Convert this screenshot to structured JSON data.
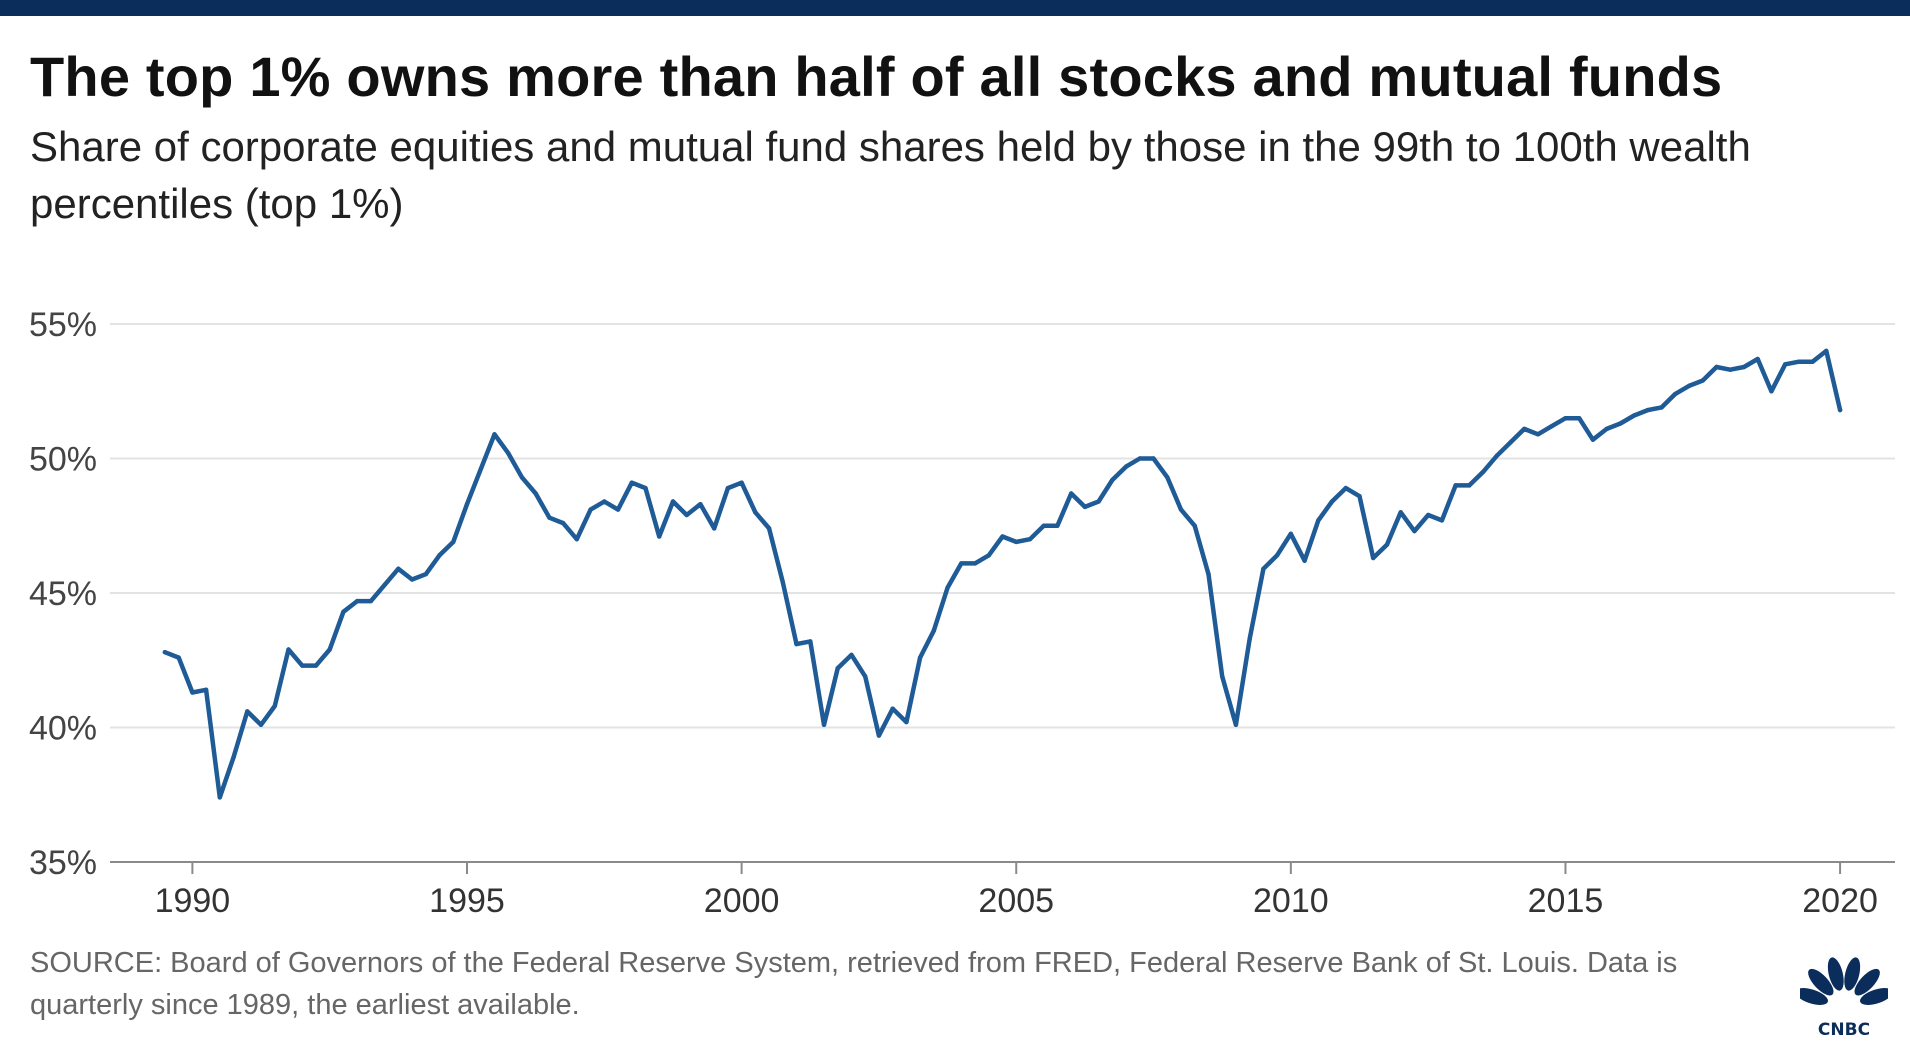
{
  "title": "The top 1% owns more than half of all stocks and mutual funds",
  "subtitle": "Share of corporate equities and mutual fund shares held by those in the 99th to 100th wealth percentiles (top 1%)",
  "source": "SOURCE: Board of Governors of the Federal Reserve System, retrieved from FRED, Federal Reserve Bank of St. Louis. Data is quarterly since 1989, the earliest available.",
  "logo": {
    "text": "CNBC",
    "icon": "nbc-peacock-icon"
  },
  "colors": {
    "line": "#1f5b96",
    "grid": "#e3e3e3",
    "topbar": "#0b2d5b",
    "logo": "#0b2d5b"
  },
  "chart_data": {
    "type": "line",
    "title": "The top 1% owns more than half of all stocks and mutual funds",
    "subtitle": "Share of corporate equities and mutual fund shares held by those in the 99th to 100th wealth percentiles (top 1%)",
    "xlabel": "",
    "ylabel": "",
    "xlim": [
      1988.5,
      2021.0
    ],
    "ylim": [
      35,
      55
    ],
    "yticks": [
      35,
      40,
      45,
      50,
      55
    ],
    "ytick_labels": [
      "35%",
      "40%",
      "45%",
      "50%",
      "55%"
    ],
    "xticks": [
      1990,
      1995,
      2000,
      2005,
      2010,
      2015,
      2020
    ],
    "xtick_labels": [
      "1990",
      "1995",
      "2000",
      "2005",
      "2010",
      "2015",
      "2020"
    ],
    "grid": true,
    "legend": "none",
    "series": [
      {
        "x": [
          1989.5,
          1989.75,
          1990.0,
          1990.25,
          1990.5,
          1990.75,
          1991.0,
          1991.25,
          1991.5,
          1991.75,
          1992.0,
          1992.25,
          1992.5,
          1992.75,
          1993.0,
          1993.25,
          1993.5,
          1993.75,
          1994.0,
          1994.25,
          1994.5,
          1994.75,
          1995.0,
          1995.25,
          1995.5,
          1995.75,
          1996.0,
          1996.25,
          1996.5,
          1996.75,
          1997.0,
          1997.25,
          1997.5,
          1997.75,
          1998.0,
          1998.25,
          1998.5,
          1998.75,
          1999.0,
          1999.25,
          1999.5,
          1999.75,
          2000.0,
          2000.25,
          2000.5,
          2000.75,
          2001.0,
          2001.25,
          2001.5,
          2001.75,
          2002.0,
          2002.25,
          2002.5,
          2002.75,
          2003.0,
          2003.25,
          2003.5,
          2003.75,
          2004.0,
          2004.25,
          2004.5,
          2004.75,
          2005.0,
          2005.25,
          2005.5,
          2005.75,
          2006.0,
          2006.25,
          2006.5,
          2006.75,
          2007.0,
          2007.25,
          2007.5,
          2007.75,
          2008.0,
          2008.25,
          2008.5,
          2008.75,
          2009.0,
          2009.25,
          2009.5,
          2009.75,
          2010.0,
          2010.25,
          2010.5,
          2010.75,
          2011.0,
          2011.25,
          2011.5,
          2011.75,
          2012.0,
          2012.25,
          2012.5,
          2012.75,
          2013.0,
          2013.25,
          2013.5,
          2013.75,
          2014.0,
          2014.25,
          2014.5,
          2014.75,
          2015.0,
          2015.25,
          2015.5,
          2015.75,
          2016.0,
          2016.25,
          2016.5,
          2016.75,
          2017.0,
          2017.25,
          2017.5,
          2017.75,
          2018.0,
          2018.25,
          2018.5,
          2018.75,
          2019.0,
          2019.25,
          2019.5,
          2019.75,
          2020.0
        ],
        "values": [
          42.8,
          42.6,
          41.3,
          41.4,
          37.4,
          38.9,
          40.6,
          40.1,
          40.8,
          42.9,
          42.3,
          42.3,
          42.9,
          44.3,
          44.7,
          44.7,
          45.3,
          45.9,
          45.5,
          45.7,
          46.4,
          46.9,
          48.3,
          49.6,
          50.9,
          50.2,
          49.3,
          48.7,
          47.8,
          47.6,
          47.0,
          48.1,
          48.4,
          48.1,
          49.1,
          48.9,
          47.1,
          48.4,
          47.9,
          48.3,
          47.4,
          48.9,
          49.1,
          48.0,
          47.4,
          45.4,
          43.1,
          43.2,
          40.1,
          42.2,
          42.7,
          41.9,
          39.7,
          40.7,
          40.2,
          42.6,
          43.6,
          45.2,
          46.1,
          46.1,
          46.4,
          47.1,
          46.9,
          47.0,
          47.5,
          47.5,
          48.7,
          48.2,
          48.4,
          49.2,
          49.7,
          50.0,
          50.0,
          49.3,
          48.1,
          47.5,
          45.7,
          41.9,
          40.1,
          43.3,
          45.9,
          46.4,
          47.2,
          46.2,
          47.7,
          48.4,
          48.9,
          48.6,
          46.3,
          46.8,
          48.0,
          47.3,
          47.9,
          47.7,
          49.0,
          49.0,
          49.5,
          50.1,
          50.6,
          51.1,
          50.9,
          51.2,
          51.5,
          51.5,
          50.7,
          51.1,
          51.3,
          51.6,
          51.8,
          51.9,
          52.4,
          52.7,
          52.9,
          53.4,
          53.3,
          53.4,
          53.7,
          52.5,
          53.5,
          53.6,
          53.6,
          54.0,
          51.8
        ]
      }
    ]
  }
}
